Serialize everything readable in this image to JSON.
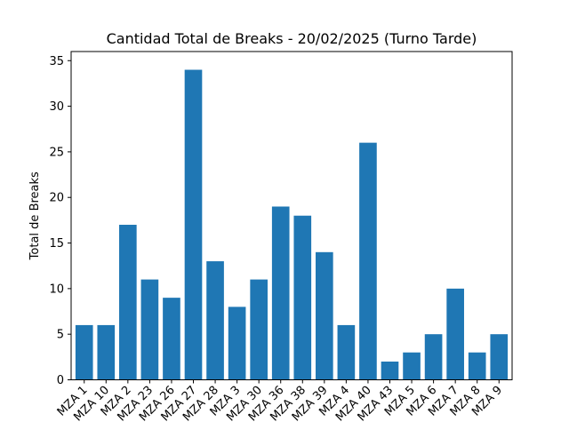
{
  "chart_data": {
    "type": "bar",
    "title": "Cantidad Total de Breaks - 20/02/2025 (Turno Tarde)",
    "xlabel": "",
    "ylabel": "Total de Breaks",
    "ylim": [
      0,
      36
    ],
    "yticks": [
      0,
      5,
      10,
      15,
      20,
      25,
      30,
      35
    ],
    "grid": false,
    "bar_color": "#1f77b4",
    "categories": [
      "MZA 1",
      "MZA 10",
      "MZA 2",
      "MZA 23",
      "MZA 26",
      "MZA 27",
      "MZA 28",
      "MZA 3",
      "MZA 30",
      "MZA 36",
      "MZA 38",
      "MZA 39",
      "MZA 4",
      "MZA 40",
      "MZA 43",
      "MZA 5",
      "MZA 6",
      "MZA 7",
      "MZA 8",
      "MZA 9"
    ],
    "values": [
      6,
      6,
      17,
      11,
      9,
      34,
      13,
      8,
      11,
      19,
      18,
      14,
      6,
      26,
      2,
      3,
      5,
      10,
      3,
      5
    ]
  }
}
